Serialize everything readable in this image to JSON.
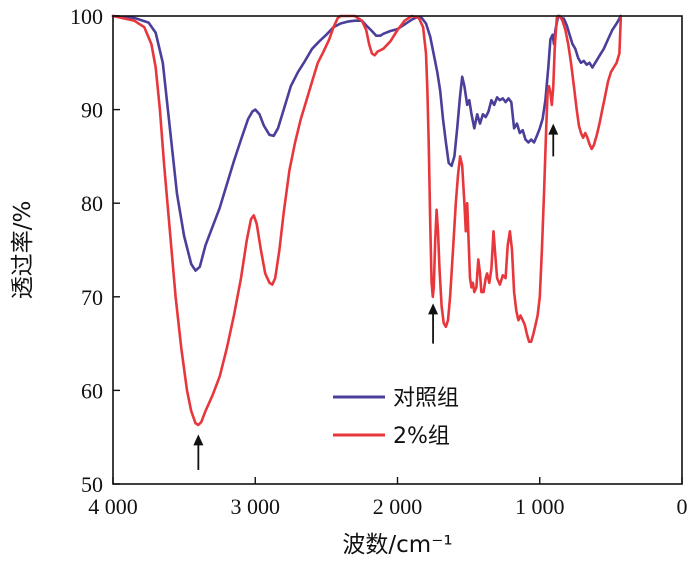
{
  "chart_data": {
    "type": "line",
    "xlabel": "波数/cm⁻¹",
    "ylabel": "透过率/%",
    "xlim": [
      4000,
      0
    ],
    "ylim": [
      50,
      100
    ],
    "x_ticks": [
      {
        "value": 4000,
        "label": "4 000"
      },
      {
        "value": 3000,
        "label": "3 000"
      },
      {
        "value": 2000,
        "label": "2 000"
      },
      {
        "value": 1000,
        "label": "1 000"
      },
      {
        "value": 0,
        "label": "0"
      }
    ],
    "y_ticks": [
      {
        "value": 50,
        "label": "50"
      },
      {
        "value": 60,
        "label": "60"
      },
      {
        "value": 70,
        "label": "70"
      },
      {
        "value": 80,
        "label": "80"
      },
      {
        "value": 90,
        "label": "90"
      },
      {
        "value": 100,
        "label": "100"
      }
    ],
    "series": [
      {
        "name": "对照组",
        "color": "#4a3f9a",
        "points": [
          [
            4000,
            100
          ],
          [
            3850,
            99.8
          ],
          [
            3750,
            99.3
          ],
          [
            3700,
            98.2
          ],
          [
            3650,
            95
          ],
          [
            3600,
            88
          ],
          [
            3550,
            81
          ],
          [
            3500,
            76.5
          ],
          [
            3450,
            73.5
          ],
          [
            3420,
            72.8
          ],
          [
            3390,
            73.2
          ],
          [
            3350,
            75.5
          ],
          [
            3300,
            77.5
          ],
          [
            3250,
            79.5
          ],
          [
            3200,
            82
          ],
          [
            3150,
            84.5
          ],
          [
            3100,
            86.8
          ],
          [
            3050,
            89
          ],
          [
            3020,
            89.8
          ],
          [
            3000,
            90
          ],
          [
            2970,
            89.5
          ],
          [
            2940,
            88.3
          ],
          [
            2900,
            87.3
          ],
          [
            2870,
            87.2
          ],
          [
            2840,
            88
          ],
          [
            2800,
            90
          ],
          [
            2750,
            92.5
          ],
          [
            2700,
            94
          ],
          [
            2650,
            95.2
          ],
          [
            2600,
            96.5
          ],
          [
            2550,
            97.3
          ],
          [
            2500,
            98
          ],
          [
            2450,
            98.8
          ],
          [
            2400,
            99.2
          ],
          [
            2350,
            99.4
          ],
          [
            2300,
            99.5
          ],
          [
            2250,
            99.5
          ],
          [
            2220,
            99
          ],
          [
            2180,
            98.4
          ],
          [
            2150,
            97.9
          ],
          [
            2120,
            97.9
          ],
          [
            2100,
            98.1
          ],
          [
            2050,
            98.4
          ],
          [
            2000,
            98.6
          ],
          [
            1950,
            99.1
          ],
          [
            1900,
            99.6
          ],
          [
            1860,
            99.9
          ],
          [
            1830,
            99.8
          ],
          [
            1800,
            99.2
          ],
          [
            1770,
            97.8
          ],
          [
            1740,
            95.5
          ],
          [
            1720,
            94
          ],
          [
            1700,
            92
          ],
          [
            1680,
            89
          ],
          [
            1660,
            86.5
          ],
          [
            1640,
            84.3
          ],
          [
            1620,
            84
          ],
          [
            1600,
            85
          ],
          [
            1580,
            88
          ],
          [
            1560,
            91.5
          ],
          [
            1545,
            93.5
          ],
          [
            1530,
            92.5
          ],
          [
            1510,
            90.5
          ],
          [
            1495,
            91
          ],
          [
            1480,
            89.5
          ],
          [
            1460,
            88
          ],
          [
            1440,
            89.5
          ],
          [
            1420,
            88.5
          ],
          [
            1400,
            89.5
          ],
          [
            1380,
            89.2
          ],
          [
            1360,
            89.8
          ],
          [
            1340,
            91
          ],
          [
            1320,
            90.5
          ],
          [
            1300,
            91.3
          ],
          [
            1280,
            91
          ],
          [
            1260,
            91.2
          ],
          [
            1240,
            90.8
          ],
          [
            1220,
            91.2
          ],
          [
            1200,
            90.8
          ],
          [
            1180,
            88
          ],
          [
            1160,
            88.5
          ],
          [
            1140,
            87.5
          ],
          [
            1120,
            87.8
          ],
          [
            1100,
            86.8
          ],
          [
            1080,
            86.5
          ],
          [
            1060,
            86.8
          ],
          [
            1040,
            86.5
          ],
          [
            1020,
            87.2
          ],
          [
            1000,
            88
          ],
          [
            980,
            89
          ],
          [
            960,
            91
          ],
          [
            940,
            94.5
          ],
          [
            925,
            97.5
          ],
          [
            910,
            98
          ],
          [
            900,
            97
          ],
          [
            890,
            98.5
          ],
          [
            870,
            100
          ],
          [
            850,
            99.8
          ],
          [
            830,
            99.7
          ],
          [
            810,
            99
          ],
          [
            790,
            98
          ],
          [
            770,
            97
          ],
          [
            750,
            96.5
          ],
          [
            730,
            95.5
          ],
          [
            710,
            95
          ],
          [
            690,
            95.2
          ],
          [
            670,
            94.8
          ],
          [
            650,
            95
          ],
          [
            630,
            94.5
          ],
          [
            610,
            95
          ],
          [
            590,
            95.5
          ],
          [
            570,
            96
          ],
          [
            550,
            96.5
          ],
          [
            520,
            97.5
          ],
          [
            490,
            98.5
          ],
          [
            460,
            99.2
          ],
          [
            430,
            100
          ]
        ]
      },
      {
        "name": "2%组",
        "color": "#e8373c",
        "points": [
          [
            4000,
            100
          ],
          [
            3850,
            99.5
          ],
          [
            3780,
            98.8
          ],
          [
            3730,
            97
          ],
          [
            3700,
            94.5
          ],
          [
            3670,
            90
          ],
          [
            3640,
            84
          ],
          [
            3600,
            77
          ],
          [
            3560,
            70
          ],
          [
            3520,
            64.5
          ],
          [
            3480,
            60
          ],
          [
            3450,
            57.8
          ],
          [
            3420,
            56.5
          ],
          [
            3400,
            56.3
          ],
          [
            3380,
            56.6
          ],
          [
            3350,
            57.8
          ],
          [
            3300,
            59.5
          ],
          [
            3250,
            61.5
          ],
          [
            3200,
            64.5
          ],
          [
            3150,
            68
          ],
          [
            3100,
            72
          ],
          [
            3060,
            76
          ],
          [
            3030,
            78.3
          ],
          [
            3010,
            78.7
          ],
          [
            2990,
            77.8
          ],
          [
            2960,
            75
          ],
          [
            2930,
            72.5
          ],
          [
            2900,
            71.5
          ],
          [
            2880,
            71.3
          ],
          [
            2860,
            72
          ],
          [
            2830,
            75
          ],
          [
            2800,
            79
          ],
          [
            2760,
            83.5
          ],
          [
            2720,
            86.5
          ],
          [
            2680,
            89
          ],
          [
            2640,
            91
          ],
          [
            2600,
            93
          ],
          [
            2560,
            95
          ],
          [
            2520,
            96.2
          ],
          [
            2480,
            97.5
          ],
          [
            2450,
            98.8
          ],
          [
            2420,
            99.8
          ],
          [
            2400,
            100
          ],
          [
            2350,
            100
          ],
          [
            2300,
            100
          ],
          [
            2250,
            99.5
          ],
          [
            2220,
            98.5
          ],
          [
            2200,
            97
          ],
          [
            2180,
            96
          ],
          [
            2160,
            95.8
          ],
          [
            2140,
            96.2
          ],
          [
            2100,
            96.5
          ],
          [
            2050,
            97.3
          ],
          [
            2000,
            98.5
          ],
          [
            1950,
            99.5
          ],
          [
            1900,
            100
          ],
          [
            1850,
            99.8
          ],
          [
            1820,
            98.8
          ],
          [
            1800,
            96
          ],
          [
            1790,
            92
          ],
          [
            1780,
            86
          ],
          [
            1770,
            78
          ],
          [
            1760,
            71.5
          ],
          [
            1752,
            70
          ],
          [
            1745,
            71
          ],
          [
            1735,
            76
          ],
          [
            1725,
            79.3
          ],
          [
            1715,
            77
          ],
          [
            1705,
            73
          ],
          [
            1690,
            69
          ],
          [
            1675,
            67.2
          ],
          [
            1660,
            66.8
          ],
          [
            1645,
            67.5
          ],
          [
            1630,
            70
          ],
          [
            1610,
            75
          ],
          [
            1590,
            80
          ],
          [
            1575,
            83
          ],
          [
            1560,
            85
          ],
          [
            1545,
            84
          ],
          [
            1530,
            80
          ],
          [
            1520,
            77
          ],
          [
            1510,
            80
          ],
          [
            1500,
            76
          ],
          [
            1490,
            72
          ],
          [
            1480,
            71
          ],
          [
            1470,
            71.5
          ],
          [
            1460,
            70.5
          ],
          [
            1445,
            71
          ],
          [
            1432,
            74
          ],
          [
            1420,
            72.5
          ],
          [
            1410,
            70.5
          ],
          [
            1395,
            70.5
          ],
          [
            1380,
            72
          ],
          [
            1370,
            72.5
          ],
          [
            1355,
            71.5
          ],
          [
            1340,
            73
          ],
          [
            1325,
            77
          ],
          [
            1315,
            75
          ],
          [
            1300,
            72
          ],
          [
            1280,
            71.3
          ],
          [
            1260,
            72.3
          ],
          [
            1240,
            72
          ],
          [
            1225,
            75.5
          ],
          [
            1210,
            77
          ],
          [
            1195,
            75
          ],
          [
            1180,
            70.5
          ],
          [
            1165,
            68.5
          ],
          [
            1150,
            67.5
          ],
          [
            1135,
            68
          ],
          [
            1120,
            67.5
          ],
          [
            1105,
            67
          ],
          [
            1090,
            66
          ],
          [
            1075,
            65.2
          ],
          [
            1060,
            65.2
          ],
          [
            1045,
            66
          ],
          [
            1030,
            67
          ],
          [
            1015,
            68
          ],
          [
            1000,
            70
          ],
          [
            985,
            75
          ],
          [
            970,
            81
          ],
          [
            955,
            88
          ],
          [
            945,
            91.8
          ],
          [
            935,
            92.5
          ],
          [
            925,
            91.8
          ],
          [
            915,
            90.5
          ],
          [
            905,
            92.5
          ],
          [
            895,
            96.5
          ],
          [
            880,
            99.8
          ],
          [
            860,
            100
          ],
          [
            840,
            99.5
          ],
          [
            820,
            98.5
          ],
          [
            800,
            97
          ],
          [
            780,
            95
          ],
          [
            760,
            92.5
          ],
          [
            740,
            90
          ],
          [
            725,
            88.3
          ],
          [
            710,
            87.5
          ],
          [
            695,
            87
          ],
          [
            680,
            87.5
          ],
          [
            665,
            87
          ],
          [
            650,
            86.3
          ],
          [
            635,
            85.8
          ],
          [
            620,
            86.2
          ],
          [
            600,
            87.2
          ],
          [
            580,
            88.5
          ],
          [
            560,
            90
          ],
          [
            540,
            91.5
          ],
          [
            520,
            93
          ],
          [
            500,
            94
          ],
          [
            480,
            94.5
          ],
          [
            460,
            95
          ],
          [
            440,
            96
          ],
          [
            430,
            99.8
          ]
        ]
      }
    ],
    "annotations": [
      {
        "type": "arrow-up",
        "x": 3400,
        "y_tip": 55.3,
        "y_tail": 51.5
      },
      {
        "type": "arrow-up",
        "x": 1750,
        "y_tip": 69.3,
        "y_tail": 65.0
      },
      {
        "type": "arrow-up",
        "x": 905,
        "y_tip": 88.5,
        "y_tail": 85.0
      }
    ],
    "grid": false,
    "legend_position": "bottom-center"
  }
}
